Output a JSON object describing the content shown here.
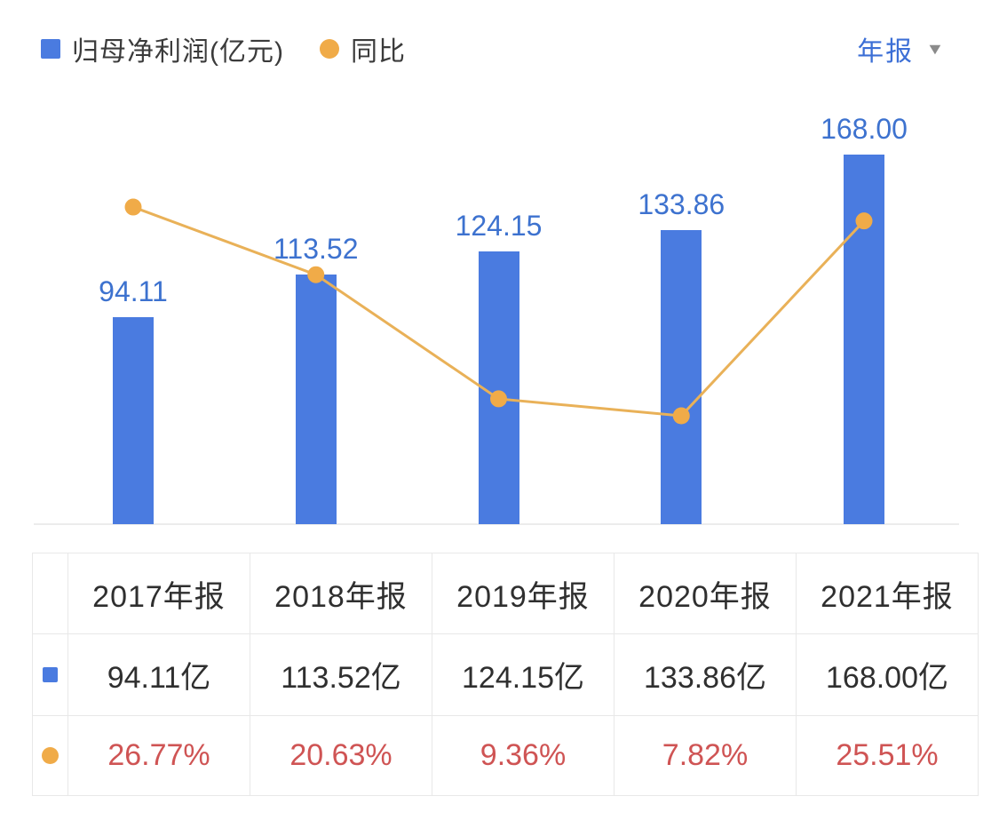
{
  "header": {
    "legend": [
      {
        "label": "归母净利润(亿元)",
        "marker": "square"
      },
      {
        "label": "同比",
        "marker": "circle"
      }
    ],
    "period_selector": {
      "label": "年报",
      "arrow": "▼"
    }
  },
  "colors": {
    "bar_blue": "#4a7be0",
    "label_blue": "#3d72cf",
    "line_orange": "#e9b158",
    "dot_orange": "#f0ab48",
    "yoy_red": "#cf5454",
    "text_dark": "#2f2f2f",
    "border_gray": "#e8e8e8",
    "baseline_gray": "#ececec",
    "arrow_gray": "#8b8b8b",
    "period_blue": "#3c6fd6"
  },
  "chart_data": {
    "type": "bar+line",
    "categories": [
      "2017年报",
      "2018年报",
      "2019年报",
      "2020年报",
      "2021年报"
    ],
    "series": [
      {
        "name": "归母净利润(亿元)",
        "type": "bar",
        "unit": "亿元",
        "values": [
          94.11,
          113.52,
          124.15,
          133.86,
          168.0
        ],
        "labels": [
          "94.11",
          "113.52",
          "124.15",
          "133.86",
          "168.00"
        ]
      },
      {
        "name": "同比",
        "type": "line",
        "unit": "%",
        "values": [
          26.77,
          20.63,
          9.36,
          7.82,
          25.51
        ],
        "labels": [
          "26.77%",
          "20.63%",
          "9.36%",
          "7.82%",
          "25.51%"
        ]
      }
    ],
    "legend_position": "top-left",
    "grid": false,
    "axes_visible": false,
    "value_labels": "above bars"
  },
  "table": {
    "columns": [
      "2017年报",
      "2018年报",
      "2019年报",
      "2020年报",
      "2021年报"
    ],
    "rows": [
      {
        "series": "归母净利润",
        "marker": "square",
        "values": [
          "94.11亿",
          "113.52亿",
          "124.15亿",
          "133.86亿",
          "168.00亿"
        ]
      },
      {
        "series": "同比",
        "marker": "circle",
        "values": [
          "26.77%",
          "20.63%",
          "9.36%",
          "7.82%",
          "25.51%"
        ]
      }
    ]
  }
}
